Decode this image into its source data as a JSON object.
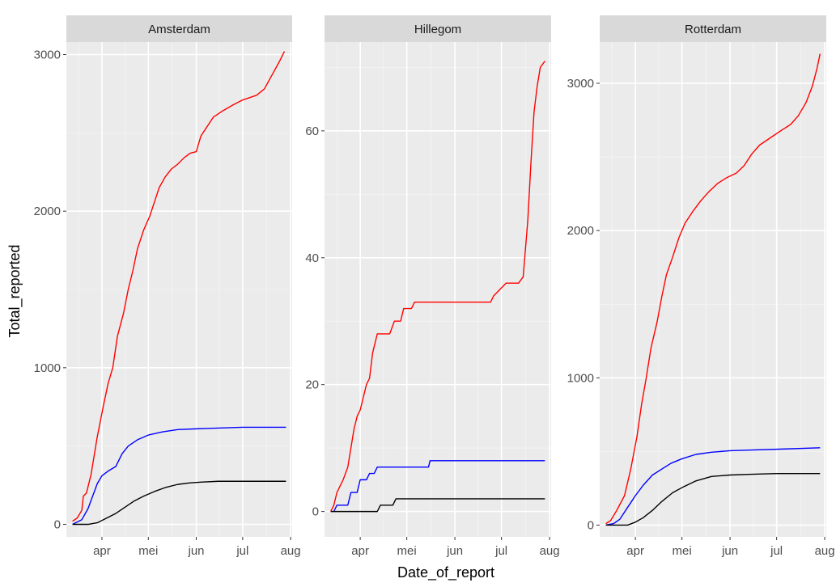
{
  "chart_data": {
    "type": "line",
    "xlabel": "Date_of_report",
    "ylabel": "Total_reported",
    "x_ticks": [
      "apr",
      "mei",
      "jun",
      "jul",
      "aug"
    ],
    "x_range": [
      "2020-03-09",
      "2020-08-02"
    ],
    "grid": true,
    "legend": "none",
    "colors": {
      "series_1": "#ff0000",
      "series_2": "#0000ff",
      "series_3": "#000000",
      "panel_bg": "#ebebeb",
      "strip_bg": "#d9d9d9",
      "grid_major": "#ffffff",
      "grid_minor": "#f5f5f5"
    },
    "panels": [
      {
        "municipality": "Amsterdam",
        "ylim": [
          -80,
          3080
        ],
        "yticks": [
          0,
          1000,
          2000,
          3000
        ],
        "series": [
          {
            "color": "#ff0000",
            "points": [
              [
                "2020-03-13",
                20
              ],
              [
                "2020-03-16",
                40
              ],
              [
                "2020-03-19",
                90
              ],
              [
                "2020-03-20",
                180
              ],
              [
                "2020-03-22",
                200
              ],
              [
                "2020-03-25",
                320
              ],
              [
                "2020-03-29",
                560
              ],
              [
                "2020-04-02",
                760
              ],
              [
                "2020-04-05",
                900
              ],
              [
                "2020-04-08",
                1000
              ],
              [
                "2020-04-11",
                1200
              ],
              [
                "2020-04-15",
                1350
              ],
              [
                "2020-04-18",
                1500
              ],
              [
                "2020-04-21",
                1620
              ],
              [
                "2020-04-24",
                1760
              ],
              [
                "2020-04-28",
                1880
              ],
              [
                "2020-05-02",
                1970
              ],
              [
                "2020-05-05",
                2060
              ],
              [
                "2020-05-08",
                2150
              ],
              [
                "2020-05-12",
                2220
              ],
              [
                "2020-05-16",
                2270
              ],
              [
                "2020-05-20",
                2300
              ],
              [
                "2020-05-24",
                2340
              ],
              [
                "2020-05-28",
                2370
              ],
              [
                "2020-06-01",
                2380
              ],
              [
                "2020-06-04",
                2480
              ],
              [
                "2020-06-08",
                2540
              ],
              [
                "2020-06-12",
                2600
              ],
              [
                "2020-06-18",
                2640
              ],
              [
                "2020-06-25",
                2680
              ],
              [
                "2020-07-01",
                2710
              ],
              [
                "2020-07-10",
                2740
              ],
              [
                "2020-07-15",
                2780
              ],
              [
                "2020-07-20",
                2870
              ],
              [
                "2020-07-25",
                2960
              ],
              [
                "2020-07-28",
                3020
              ]
            ]
          },
          {
            "color": "#0000ff",
            "points": [
              [
                "2020-03-13",
                0
              ],
              [
                "2020-03-19",
                30
              ],
              [
                "2020-03-23",
                100
              ],
              [
                "2020-03-26",
                180
              ],
              [
                "2020-03-29",
                260
              ],
              [
                "2020-04-01",
                310
              ],
              [
                "2020-04-05",
                340
              ],
              [
                "2020-04-10",
                370
              ],
              [
                "2020-04-14",
                450
              ],
              [
                "2020-04-18",
                500
              ],
              [
                "2020-04-24",
                540
              ],
              [
                "2020-05-01",
                570
              ],
              [
                "2020-05-10",
                590
              ],
              [
                "2020-05-20",
                605
              ],
              [
                "2020-06-01",
                610
              ],
              [
                "2020-06-15",
                615
              ],
              [
                "2020-07-01",
                620
              ],
              [
                "2020-07-29",
                620
              ]
            ]
          },
          {
            "color": "#000000",
            "points": [
              [
                "2020-03-13",
                0
              ],
              [
                "2020-03-23",
                0
              ],
              [
                "2020-03-29",
                10
              ],
              [
                "2020-04-02",
                30
              ],
              [
                "2020-04-06",
                50
              ],
              [
                "2020-04-10",
                70
              ],
              [
                "2020-04-16",
                110
              ],
              [
                "2020-04-22",
                150
              ],
              [
                "2020-04-28",
                180
              ],
              [
                "2020-05-05",
                210
              ],
              [
                "2020-05-12",
                235
              ],
              [
                "2020-05-20",
                255
              ],
              [
                "2020-05-28",
                265
              ],
              [
                "2020-06-05",
                270
              ],
              [
                "2020-06-15",
                275
              ],
              [
                "2020-07-01",
                275
              ],
              [
                "2020-07-29",
                275
              ]
            ]
          }
        ]
      },
      {
        "municipality": "Hillegom",
        "ylim": [
          -4,
          74
        ],
        "yticks": [
          0,
          20,
          40,
          60
        ],
        "series": [
          {
            "color": "#ff0000",
            "points": [
              [
                "2020-03-13",
                0
              ],
              [
                "2020-03-15",
                1
              ],
              [
                "2020-03-17",
                3
              ],
              [
                "2020-03-19",
                4
              ],
              [
                "2020-03-21",
                5
              ],
              [
                "2020-03-24",
                7
              ],
              [
                "2020-03-26",
                10
              ],
              [
                "2020-03-28",
                13
              ],
              [
                "2020-03-30",
                15
              ],
              [
                "2020-04-01",
                16
              ],
              [
                "2020-04-03",
                18
              ],
              [
                "2020-04-05",
                20
              ],
              [
                "2020-04-07",
                21
              ],
              [
                "2020-04-09",
                25
              ],
              [
                "2020-04-12",
                28
              ],
              [
                "2020-04-20",
                28
              ],
              [
                "2020-04-23",
                30
              ],
              [
                "2020-04-27",
                30
              ],
              [
                "2020-04-29",
                32
              ],
              [
                "2020-05-04",
                32
              ],
              [
                "2020-05-06",
                33
              ],
              [
                "2020-06-24",
                33
              ],
              [
                "2020-06-26",
                34
              ],
              [
                "2020-06-30",
                35
              ],
              [
                "2020-07-04",
                36
              ],
              [
                "2020-07-12",
                36
              ],
              [
                "2020-07-15",
                37
              ],
              [
                "2020-07-18",
                46
              ],
              [
                "2020-07-20",
                55
              ],
              [
                "2020-07-22",
                63
              ],
              [
                "2020-07-24",
                67
              ],
              [
                "2020-07-26",
                70
              ],
              [
                "2020-07-29",
                71
              ]
            ]
          },
          {
            "color": "#0000ff",
            "points": [
              [
                "2020-03-15",
                0
              ],
              [
                "2020-03-17",
                1
              ],
              [
                "2020-03-24",
                1
              ],
              [
                "2020-03-26",
                3
              ],
              [
                "2020-03-30",
                3
              ],
              [
                "2020-04-01",
                5
              ],
              [
                "2020-04-05",
                5
              ],
              [
                "2020-04-07",
                6
              ],
              [
                "2020-04-10",
                6
              ],
              [
                "2020-04-12",
                7
              ],
              [
                "2020-04-30",
                7
              ],
              [
                "2020-05-02",
                7
              ],
              [
                "2020-05-15",
                7
              ],
              [
                "2020-05-16",
                8
              ],
              [
                "2020-06-15",
                8
              ],
              [
                "2020-07-29",
                8
              ]
            ]
          },
          {
            "color": "#000000",
            "points": [
              [
                "2020-03-13",
                0
              ],
              [
                "2020-04-12",
                0
              ],
              [
                "2020-04-14",
                1
              ],
              [
                "2020-04-22",
                1
              ],
              [
                "2020-04-24",
                2
              ],
              [
                "2020-05-15",
                2
              ],
              [
                "2020-06-15",
                2
              ],
              [
                "2020-07-29",
                2
              ]
            ]
          }
        ]
      },
      {
        "municipality": "Rotterdam",
        "ylim": [
          -80,
          3280
        ],
        "yticks": [
          0,
          1000,
          2000,
          3000
        ],
        "series": [
          {
            "color": "#ff0000",
            "points": [
              [
                "2020-03-13",
                10
              ],
              [
                "2020-03-16",
                30
              ],
              [
                "2020-03-20",
                100
              ],
              [
                "2020-03-25",
                200
              ],
              [
                "2020-03-29",
                380
              ],
              [
                "2020-04-02",
                600
              ],
              [
                "2020-04-05",
                820
              ],
              [
                "2020-04-08",
                1000
              ],
              [
                "2020-04-11",
                1200
              ],
              [
                "2020-04-15",
                1380
              ],
              [
                "2020-04-18",
                1550
              ],
              [
                "2020-04-21",
                1700
              ],
              [
                "2020-04-25",
                1820
              ],
              [
                "2020-04-29",
                1950
              ],
              [
                "2020-05-03",
                2050
              ],
              [
                "2020-05-08",
                2130
              ],
              [
                "2020-05-13",
                2200
              ],
              [
                "2020-05-18",
                2260
              ],
              [
                "2020-05-24",
                2320
              ],
              [
                "2020-05-30",
                2360
              ],
              [
                "2020-06-05",
                2390
              ],
              [
                "2020-06-10",
                2440
              ],
              [
                "2020-06-15",
                2520
              ],
              [
                "2020-06-20",
                2580
              ],
              [
                "2020-06-27",
                2630
              ],
              [
                "2020-07-04",
                2680
              ],
              [
                "2020-07-10",
                2720
              ],
              [
                "2020-07-15",
                2780
              ],
              [
                "2020-07-20",
                2870
              ],
              [
                "2020-07-24",
                2980
              ],
              [
                "2020-07-27",
                3100
              ],
              [
                "2020-07-29",
                3200
              ]
            ]
          },
          {
            "color": "#0000ff",
            "points": [
              [
                "2020-03-13",
                0
              ],
              [
                "2020-03-18",
                10
              ],
              [
                "2020-03-22",
                40
              ],
              [
                "2020-03-27",
                120
              ],
              [
                "2020-04-01",
                200
              ],
              [
                "2020-04-06",
                270
              ],
              [
                "2020-04-12",
                340
              ],
              [
                "2020-04-18",
                380
              ],
              [
                "2020-04-24",
                420
              ],
              [
                "2020-05-01",
                450
              ],
              [
                "2020-05-10",
                480
              ],
              [
                "2020-05-20",
                495
              ],
              [
                "2020-06-01",
                505
              ],
              [
                "2020-06-15",
                510
              ],
              [
                "2020-07-01",
                515
              ],
              [
                "2020-07-29",
                525
              ]
            ]
          },
          {
            "color": "#000000",
            "points": [
              [
                "2020-03-13",
                0
              ],
              [
                "2020-03-27",
                0
              ],
              [
                "2020-04-01",
                20
              ],
              [
                "2020-04-06",
                50
              ],
              [
                "2020-04-12",
                100
              ],
              [
                "2020-04-18",
                160
              ],
              [
                "2020-04-25",
                220
              ],
              [
                "2020-05-02",
                260
              ],
              [
                "2020-05-10",
                300
              ],
              [
                "2020-05-20",
                330
              ],
              [
                "2020-06-01",
                340
              ],
              [
                "2020-06-15",
                345
              ],
              [
                "2020-07-01",
                350
              ],
              [
                "2020-07-29",
                350
              ]
            ]
          }
        ]
      }
    ]
  }
}
